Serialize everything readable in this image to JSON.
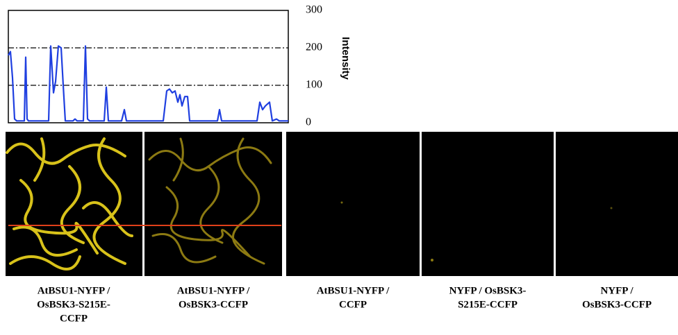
{
  "chart_data": {
    "type": "line",
    "y_label": "Intensity",
    "x": [
      0,
      3,
      6,
      9,
      12,
      23,
      25,
      27,
      29,
      58,
      61,
      65,
      68,
      72,
      76,
      79,
      82,
      93,
      96,
      99,
      108,
      111,
      114,
      117,
      138,
      141,
      144,
      163,
      167,
      170,
      223,
      228,
      232,
      236,
      240,
      244,
      247,
      250,
      254,
      258,
      261,
      301,
      304,
      307,
      358,
      362,
      366,
      370,
      376,
      380,
      386,
      390,
      403
    ],
    "xlim": [
      0,
      403
    ],
    "series": [
      {
        "name": "Intensity",
        "color": "#1f3fe0",
        "values": [
          180,
          190,
          120,
          10,
          5,
          5,
          175,
          10,
          5,
          5,
          205,
          80,
          110,
          205,
          200,
          100,
          5,
          5,
          10,
          5,
          5,
          205,
          10,
          5,
          5,
          95,
          5,
          5,
          35,
          5,
          5,
          85,
          90,
          80,
          85,
          55,
          75,
          45,
          70,
          70,
          5,
          5,
          35,
          5,
          5,
          55,
          35,
          45,
          55,
          5,
          10,
          5,
          5
        ]
      }
    ],
    "ylim": [
      0,
      300
    ],
    "yticks": [
      0,
      100,
      200,
      300
    ],
    "grid": true
  },
  "panels": [
    {
      "label": [
        "AtBSU1-NYFP /",
        "OsBSK3-S215E-",
        "CCFP"
      ]
    },
    {
      "label": [
        "AtBSU1-NYFP /",
        "OsBSK3-CCFP"
      ]
    },
    {
      "label": [
        "AtBSU1-NYFP /",
        "CCFP"
      ]
    },
    {
      "label": [
        "NYFP / OsBSK3-",
        "S215E-CCFP"
      ]
    },
    {
      "label": [
        "NYFP /",
        "OsBSK3-CCFP"
      ]
    }
  ]
}
